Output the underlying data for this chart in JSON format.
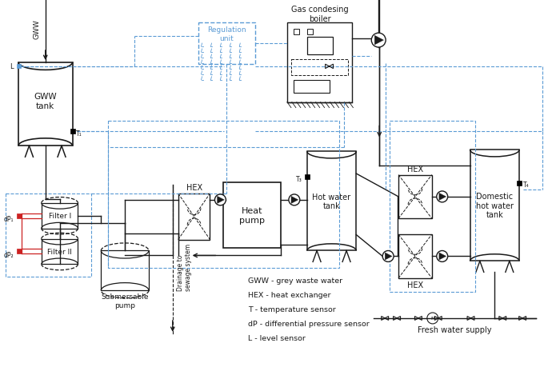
{
  "bg_color": "#ffffff",
  "line_color": "#1a1a1a",
  "blue_color": "#5b9bd5",
  "red_color": "#cc2222",
  "labels": {
    "GWW": "GWW",
    "gww_tank": "GWW\ntank",
    "filter1": "Filter I",
    "filter2": "Filter II",
    "sub_pump": "Submersable\npump",
    "hex1": "HEX",
    "heat_pump": "Heat\npump",
    "hot_water_tank": "Hot water\ntank",
    "hex2": "HEX",
    "hex3": "HEX",
    "domestic_tank": "Domestic\nhot water\ntank",
    "gas_boiler": "Gas condesing\nboiler",
    "regulation": "Regulation\nunit",
    "fresh_water": "Fresh water supply",
    "drainage": "Drainage to\nsewage system",
    "T1": "T₁",
    "T3": "T₃",
    "T4": "T₄",
    "L": "L",
    "dP1": "dP₁",
    "dP2": "dP₂",
    "legend_gww": "GWW - grey waste water",
    "legend_hex": "HEX - heat exchanger",
    "legend_T": "T - temperature sensor",
    "legend_dP": "dP - differential pressure sensor",
    "legend_L": "L - level sensor"
  }
}
